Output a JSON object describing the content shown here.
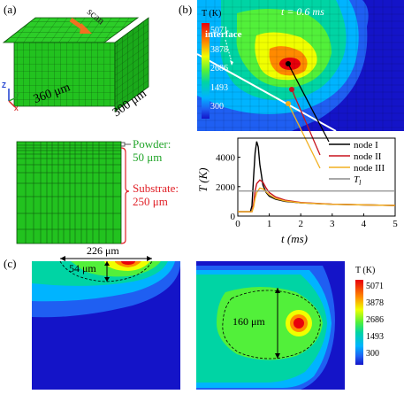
{
  "panels": {
    "a": {
      "label": "(a)",
      "scan_label": "scan",
      "dim_x": "360 μm",
      "dim_y": "300 μm",
      "axis_z": "Z",
      "axis_y": "Y",
      "axis_x": "X",
      "powder_label": "Powder:",
      "powder_value": "50 μm",
      "substrate_label": "Substrate:",
      "substrate_value": "250 μm"
    },
    "b": {
      "label": "(b)",
      "time": "t = 0.6 ms",
      "interface": "interface",
      "colorbar_title": "T (K)",
      "colorbar_ticks": [
        "5071",
        "3878",
        "2686",
        "1493",
        "300"
      ]
    },
    "c": {
      "label": "(c)",
      "width_dim": "226 μm",
      "depth_dim": "54 μm",
      "diameter_dim": "160 μm",
      "colorbar_title": "T (K)",
      "colorbar_ticks": [
        "5071",
        "3878",
        "2686",
        "1493",
        "300"
      ]
    }
  },
  "colors": {
    "mesh_green": "#22c21f",
    "powder_text": "#22a52a",
    "substrate_text": "#e01f26",
    "deep_blue": "#1414c8",
    "node1": "#000000",
    "node2": "#c8141e",
    "node3": "#f2b020",
    "tl": "#8c8c8c"
  },
  "chart_data": {
    "type": "line",
    "xlabel": "t (ms)",
    "ylabel": "T (K)",
    "xlim": [
      0,
      5
    ],
    "ylim": [
      0,
      5300
    ],
    "xticks": [
      0,
      1,
      2,
      3,
      4,
      5
    ],
    "yticks": [
      0,
      2000,
      4000
    ],
    "series": [
      {
        "name": "node I",
        "color": "#000000",
        "x": [
          0,
          0.4,
          0.45,
          0.5,
          0.55,
          0.6,
          0.65,
          0.7,
          0.8,
          0.9,
          1.0,
          1.2,
          1.5,
          2.0,
          2.5,
          3.0,
          4.0,
          5.0
        ],
        "y": [
          300,
          300,
          700,
          2600,
          4300,
          5071,
          4700,
          3500,
          2100,
          1600,
          1350,
          1150,
          1000,
          900,
          850,
          800,
          760,
          720
        ]
      },
      {
        "name": "node II",
        "color": "#c8141e",
        "x": [
          0,
          0.45,
          0.5,
          0.55,
          0.6,
          0.7,
          0.8,
          0.9,
          1.0,
          1.2,
          1.5,
          2.0,
          2.5,
          3.0,
          4.0,
          5.0
        ],
        "y": [
          300,
          300,
          800,
          1700,
          2200,
          2450,
          2300,
          1900,
          1600,
          1300,
          1080,
          920,
          860,
          810,
          760,
          720
        ]
      },
      {
        "name": "node III",
        "color": "#f2b020",
        "x": [
          0,
          0.45,
          0.5,
          0.55,
          0.6,
          0.7,
          0.8,
          0.9,
          1.0,
          1.2,
          1.5,
          2.0,
          2.5,
          3.0,
          4.0,
          5.0
        ],
        "y": [
          300,
          300,
          600,
          1200,
          1600,
          1900,
          1850,
          1650,
          1450,
          1200,
          1030,
          900,
          850,
          800,
          760,
          720
        ]
      },
      {
        "name": "T_l",
        "color": "#8c8c8c",
        "x": [
          0,
          5
        ],
        "y": [
          1700,
          1700
        ]
      }
    ],
    "legend_labels": [
      "node I",
      "node II",
      "node III",
      "T"
    ],
    "legend_sub": "l"
  }
}
